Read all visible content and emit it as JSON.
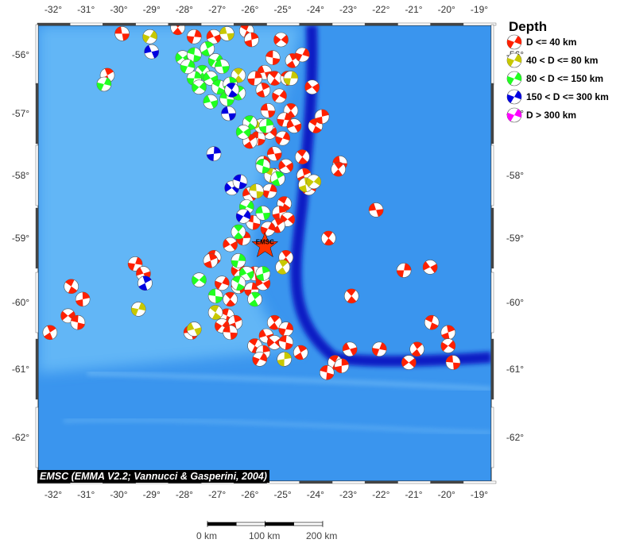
{
  "map": {
    "lon_ticks": [
      -32,
      -31,
      -30,
      -29,
      -28,
      -27,
      -26,
      -25,
      -24,
      -23,
      -22,
      -21,
      -20,
      -19
    ],
    "lat_ticks": [
      -56,
      -57,
      -58,
      -59,
      -60,
      -61,
      -62
    ],
    "degree_symbol": "°",
    "colors": {
      "ocean": "#3a95ee",
      "plateau": "#62b6f6",
      "trench": "#0a1fc4"
    },
    "station": {
      "label": "EMSC",
      "lon": -25.54,
      "lat": -59.12,
      "color": "#ff3300"
    },
    "attribution": "EMSC (EMMA V2.2; Vannucci & Gasperini, 2004)"
  },
  "legend": {
    "title": "Depth",
    "items": [
      {
        "label": "D <= 40 km",
        "color": "#ff2000"
      },
      {
        "label": "40 < D <= 80 km",
        "color": "#c8c800"
      },
      {
        "label": "80 < D <= 150 km",
        "color": "#20ff20"
      },
      {
        "label": "150 < D <= 300 km",
        "color": "#0000e0"
      },
      {
        "label": "D > 300 km",
        "color": "#ff00ff"
      }
    ]
  },
  "scale_bar": {
    "labels": [
      "0 km",
      "100 km",
      "200 km"
    ]
  },
  "events": {
    "shallow": [
      [
        -29.9,
        -55.65
      ],
      [
        -28.2,
        -55.55
      ],
      [
        -27.7,
        -55.7
      ],
      [
        -27.1,
        -55.7
      ],
      [
        -26.1,
        -55.6
      ],
      [
        -25.95,
        -55.75
      ],
      [
        -25.05,
        -55.75
      ],
      [
        -25.3,
        -56.05
      ],
      [
        -24.7,
        -56.1
      ],
      [
        -24.4,
        -56.0
      ],
      [
        -25.55,
        -56.3
      ],
      [
        -25.25,
        -56.4
      ],
      [
        -25.85,
        -56.4
      ],
      [
        -24.1,
        -56.55
      ],
      [
        -24.85,
        -56.4
      ],
      [
        -25.6,
        -56.6
      ],
      [
        -25.1,
        -56.7
      ],
      [
        -25.45,
        -56.95
      ],
      [
        -24.75,
        -56.95
      ],
      [
        -24.95,
        -57.1
      ],
      [
        -24.65,
        -57.2
      ],
      [
        -24.0,
        -57.2
      ],
      [
        -23.8,
        -57.05
      ],
      [
        -25.4,
        -57.3
      ],
      [
        -25.75,
        -57.4
      ],
      [
        -26.0,
        -57.45
      ],
      [
        -25.0,
        -57.4
      ],
      [
        -25.25,
        -57.65
      ],
      [
        -24.4,
        -57.7
      ],
      [
        -25.6,
        -57.8
      ],
      [
        -24.9,
        -57.85
      ],
      [
        -25.25,
        -58.0
      ],
      [
        -24.35,
        -58.0
      ],
      [
        -24.2,
        -58.2
      ],
      [
        -23.25,
        -57.8
      ],
      [
        -23.3,
        -57.9
      ],
      [
        -25.4,
        -58.25
      ],
      [
        -26.0,
        -58.3
      ],
      [
        -24.95,
        -58.45
      ],
      [
        -25.1,
        -58.6
      ],
      [
        -24.85,
        -58.7
      ],
      [
        -25.9,
        -58.75
      ],
      [
        -25.15,
        -58.8
      ],
      [
        -25.45,
        -58.85
      ],
      [
        -22.15,
        -58.55
      ],
      [
        -23.6,
        -59.0
      ],
      [
        -26.2,
        -59.0
      ],
      [
        -26.6,
        -59.1
      ],
      [
        -27.1,
        -59.3
      ],
      [
        -27.2,
        -59.35
      ],
      [
        -26.35,
        -59.5
      ],
      [
        -25.85,
        -59.55
      ],
      [
        -24.9,
        -59.3
      ],
      [
        -29.5,
        -59.4
      ],
      [
        -29.25,
        -59.55
      ],
      [
        -31.45,
        -59.75
      ],
      [
        -31.1,
        -59.95
      ],
      [
        -31.55,
        -60.2
      ],
      [
        -31.25,
        -60.3
      ],
      [
        -32.1,
        -60.45
      ],
      [
        -26.85,
        -59.7
      ],
      [
        -26.35,
        -59.75
      ],
      [
        -26.6,
        -59.95
      ],
      [
        -25.95,
        -59.8
      ],
      [
        -25.6,
        -59.7
      ],
      [
        -26.7,
        -60.2
      ],
      [
        -26.45,
        -60.3
      ],
      [
        -26.85,
        -60.35
      ],
      [
        -26.6,
        -60.45
      ],
      [
        -25.25,
        -60.3
      ],
      [
        -24.9,
        -60.4
      ],
      [
        -25.5,
        -60.5
      ],
      [
        -25.85,
        -60.65
      ],
      [
        -25.6,
        -60.75
      ],
      [
        -25.25,
        -60.6
      ],
      [
        -24.9,
        -60.6
      ],
      [
        -24.45,
        -60.75
      ],
      [
        -25.7,
        -60.85
      ],
      [
        -27.8,
        -60.45
      ],
      [
        -22.9,
        -59.9
      ],
      [
        -21.3,
        -59.5
      ],
      [
        -20.5,
        -59.45
      ],
      [
        -20.45,
        -60.3
      ],
      [
        -19.95,
        -60.45
      ],
      [
        -19.95,
        -60.65
      ],
      [
        -19.8,
        -60.9
      ],
      [
        -20.9,
        -60.7
      ],
      [
        -22.05,
        -60.7
      ],
      [
        -22.95,
        -60.7
      ],
      [
        -23.4,
        -60.9
      ],
      [
        -23.2,
        -60.95
      ],
      [
        -21.15,
        -60.9
      ],
      [
        -23.65,
        -61.05
      ],
      [
        -30.35,
        -56.35
      ]
    ],
    "intermediate": [
      [
        -29.05,
        -55.7
      ],
      [
        -26.7,
        -55.65
      ],
      [
        -26.35,
        -56.35
      ],
      [
        -24.75,
        -56.4
      ],
      [
        -25.65,
        -57.2
      ],
      [
        -25.35,
        -58.0
      ],
      [
        -24.3,
        -58.15
      ],
      [
        -24.05,
        -58.1
      ],
      [
        -25.8,
        -58.25
      ],
      [
        -25.0,
        -59.45
      ],
      [
        -29.4,
        -60.1
      ],
      [
        -27.7,
        -60.4
      ],
      [
        -27.05,
        -60.15
      ],
      [
        -24.95,
        -60.85
      ]
    ],
    "deep": [
      [
        -28.05,
        -56.05
      ],
      [
        -27.7,
        -56.0
      ],
      [
        -27.3,
        -55.9
      ],
      [
        -27.05,
        -56.1
      ],
      [
        -26.85,
        -56.2
      ],
      [
        -27.45,
        -56.3
      ],
      [
        -27.7,
        -56.4
      ],
      [
        -27.2,
        -56.4
      ],
      [
        -26.95,
        -56.55
      ],
      [
        -26.6,
        -56.5
      ],
      [
        -27.55,
        -56.55
      ],
      [
        -26.7,
        -56.75
      ],
      [
        -26.35,
        -56.65
      ],
      [
        -27.9,
        -56.2
      ],
      [
        -27.2,
        -56.8
      ],
      [
        -26.0,
        -57.15
      ],
      [
        -25.5,
        -57.2
      ],
      [
        -26.2,
        -57.3
      ],
      [
        -25.6,
        -57.85
      ],
      [
        -25.15,
        -58.05
      ],
      [
        -26.1,
        -58.5
      ],
      [
        -25.6,
        -58.6
      ],
      [
        -26.35,
        -58.9
      ],
      [
        -26.35,
        -59.35
      ],
      [
        -26.1,
        -59.55
      ],
      [
        -26.35,
        -59.7
      ],
      [
        -25.6,
        -59.55
      ],
      [
        -27.55,
        -59.65
      ],
      [
        -27.05,
        -59.9
      ],
      [
        -25.85,
        -59.95
      ],
      [
        -30.45,
        -56.5
      ]
    ],
    "very_deep": [
      [
        -29.0,
        -55.95
      ],
      [
        -26.55,
        -56.6
      ],
      [
        -27.1,
        -57.65
      ],
      [
        -26.55,
        -58.2
      ],
      [
        -26.3,
        -58.1
      ],
      [
        -29.2,
        -59.7
      ],
      [
        -26.2,
        -58.65
      ],
      [
        -26.65,
        -57.0
      ]
    ]
  }
}
